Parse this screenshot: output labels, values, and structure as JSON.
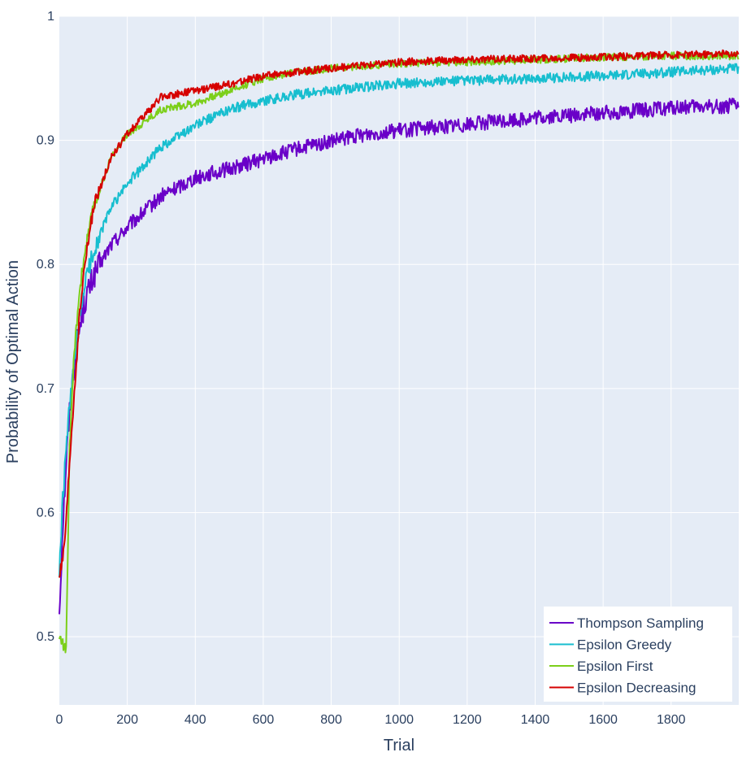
{
  "chart_data": {
    "type": "line",
    "title": "",
    "xlabel": "Trial",
    "ylabel": "Probability of Optimal Action",
    "xlim": [
      0,
      1999
    ],
    "ylim": [
      0.445,
      1.0
    ],
    "x_ticks": [
      0,
      200,
      400,
      600,
      800,
      1000,
      1200,
      1400,
      1600,
      1800
    ],
    "x_tick_labels": [
      "0",
      "200",
      "400",
      "600",
      "800",
      "1000",
      "1200",
      "1400",
      "1600",
      "1800"
    ],
    "y_ticks": [
      0.5,
      0.6,
      0.7,
      0.8,
      0.9,
      1.0
    ],
    "y_tick_labels": [
      "0.5",
      "0.6",
      "0.7",
      "0.8",
      "0.9",
      "1"
    ],
    "grid": true,
    "legend_position": "bottom-right",
    "plot_background": "#e5ecf6",
    "grid_color": "#ffffff",
    "text_color": "#2a3f5f",
    "series": [
      {
        "name": "Thompson Sampling",
        "color": "#6a00c8",
        "noise": 0.006,
        "x": [
          0,
          10,
          20,
          30,
          40,
          50,
          75,
          100,
          150,
          200,
          300,
          400,
          500,
          600,
          700,
          800,
          900,
          1000,
          1200,
          1400,
          1600,
          1800,
          1999
        ],
        "y": [
          0.52,
          0.59,
          0.64,
          0.68,
          0.71,
          0.735,
          0.77,
          0.79,
          0.815,
          0.83,
          0.855,
          0.87,
          0.877,
          0.885,
          0.893,
          0.899,
          0.905,
          0.908,
          0.913,
          0.918,
          0.922,
          0.926,
          0.928
        ]
      },
      {
        "name": "Epsilon Greedy",
        "color": "#17becf",
        "noise": 0.004,
        "x": [
          0,
          10,
          20,
          30,
          40,
          50,
          75,
          100,
          150,
          200,
          300,
          400,
          500,
          600,
          700,
          800,
          900,
          1000,
          1200,
          1400,
          1600,
          1800,
          1999
        ],
        "y": [
          0.55,
          0.61,
          0.65,
          0.685,
          0.71,
          0.735,
          0.785,
          0.81,
          0.845,
          0.865,
          0.895,
          0.912,
          0.925,
          0.932,
          0.937,
          0.94,
          0.943,
          0.946,
          0.948,
          0.95,
          0.952,
          0.955,
          0.958
        ]
      },
      {
        "name": "Epsilon First",
        "color": "#7ccf1a",
        "noise": 0.003,
        "x": [
          0,
          10,
          20,
          25,
          30,
          40,
          50,
          60,
          75,
          100,
          150,
          200,
          300,
          400,
          500,
          600,
          700,
          800,
          1000,
          1200,
          1400,
          1600,
          1800,
          1999
        ],
        "y": [
          0.5,
          0.495,
          0.49,
          0.56,
          0.65,
          0.71,
          0.75,
          0.78,
          0.81,
          0.845,
          0.885,
          0.905,
          0.925,
          0.93,
          0.94,
          0.95,
          0.955,
          0.958,
          0.962,
          0.963,
          0.965,
          0.967,
          0.968,
          0.968
        ]
      },
      {
        "name": "Epsilon Decreasing",
        "color": "#d60000",
        "noise": 0.003,
        "x": [
          0,
          10,
          20,
          30,
          40,
          50,
          60,
          75,
          100,
          150,
          200,
          300,
          400,
          500,
          600,
          700,
          800,
          1000,
          1200,
          1400,
          1600,
          1800,
          1999
        ],
        "y": [
          0.55,
          0.56,
          0.59,
          0.64,
          0.68,
          0.72,
          0.76,
          0.8,
          0.845,
          0.885,
          0.905,
          0.935,
          0.94,
          0.945,
          0.952,
          0.955,
          0.958,
          0.963,
          0.965,
          0.966,
          0.967,
          0.969,
          0.97
        ]
      }
    ]
  }
}
